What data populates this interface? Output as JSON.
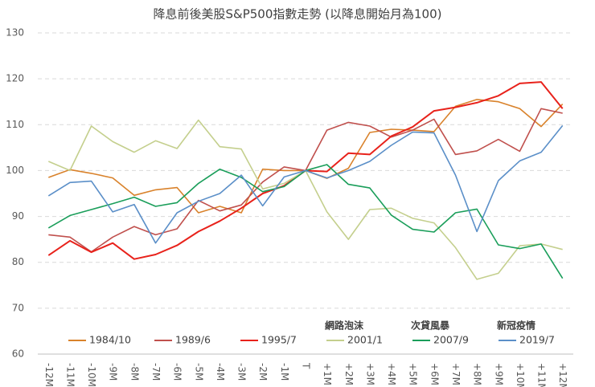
{
  "chart_data": {
    "type": "line",
    "title": "降息前後美股S&P500指數走勢 (以降息開始月為100)",
    "categories": [
      "-12M",
      "-11M",
      "-10M",
      "-9M",
      "-8M",
      "-7M",
      "-6M",
      "-5M",
      "-4M",
      "-3M",
      "-2M",
      "-1M",
      "T",
      "+1M",
      "+2M",
      "+3M",
      "+4M",
      "+5M",
      "+6M",
      "+7M",
      "+8M",
      "+9M",
      "+10M",
      "+11M",
      "+12M"
    ],
    "series": [
      {
        "name": "1984/10",
        "color": "#d9822b",
        "values": [
          98.5,
          100.2,
          99.4,
          98.4,
          94.6,
          95.8,
          96.3,
          90.8,
          92.2,
          90.8,
          100.3,
          100,
          100,
          98.3,
          100.5,
          108.3,
          109,
          108.8,
          108.5,
          114,
          115.5,
          115,
          113.5,
          109.6,
          114.5
        ]
      },
      {
        "name": "1989/6",
        "color": "#c0504d",
        "values": [
          86,
          85.5,
          82.3,
          85.5,
          87.8,
          86,
          87.3,
          93.5,
          91.2,
          92.5,
          97.5,
          100.8,
          100,
          108.8,
          110.5,
          109.7,
          107.3,
          108.8,
          111.2,
          103.5,
          104.3,
          106.8,
          104.2,
          113.5,
          112.5
        ]
      },
      {
        "name": "1995/7",
        "color": "#e8221b",
        "values": [
          81.5,
          84.7,
          82.2,
          84.2,
          80.7,
          81.7,
          83.7,
          86.7,
          89,
          91.8,
          95,
          96.7,
          100,
          99.8,
          103.8,
          103.5,
          107.5,
          109.5,
          113,
          113.8,
          114.8,
          116.3,
          119,
          119.3,
          113.5
        ]
      },
      {
        "name": "2001/1",
        "color": "#c4cf8d",
        "note": "網路泡沫",
        "values": [
          102,
          100,
          109.7,
          106.3,
          104,
          106.5,
          104.8,
          111,
          105.2,
          104.7,
          96,
          97.2,
          100,
          91,
          85,
          91.5,
          91.8,
          89.6,
          88.6,
          83.2,
          76.3,
          77.6,
          83.6,
          84,
          82.8
        ]
      },
      {
        "name": "2007/9",
        "color": "#1a9e5a",
        "note": "次貸風暴",
        "values": [
          87.5,
          90.2,
          91.5,
          92.8,
          94.2,
          92.2,
          93,
          97.2,
          100.3,
          98.5,
          95.4,
          96.5,
          100,
          101.3,
          97,
          96.2,
          90.3,
          87.2,
          86.6,
          90.8,
          91.6,
          83.8,
          83,
          84,
          76.5
        ]
      },
      {
        "name": "2019/7",
        "color": "#5b8fc8",
        "note": "新冠疫情",
        "values": [
          94.5,
          97.4,
          97.7,
          91,
          92.6,
          84.2,
          90.8,
          93.3,
          95,
          99,
          92.3,
          98.6,
          100,
          98.4,
          100,
          102,
          105.5,
          108.4,
          108.2,
          99,
          86.7,
          97.8,
          102.1,
          104,
          109.8
        ]
      }
    ],
    "ylim": [
      60,
      130
    ],
    "yticks": [
      60,
      70,
      80,
      90,
      100,
      110,
      120,
      130
    ],
    "grid": true
  }
}
